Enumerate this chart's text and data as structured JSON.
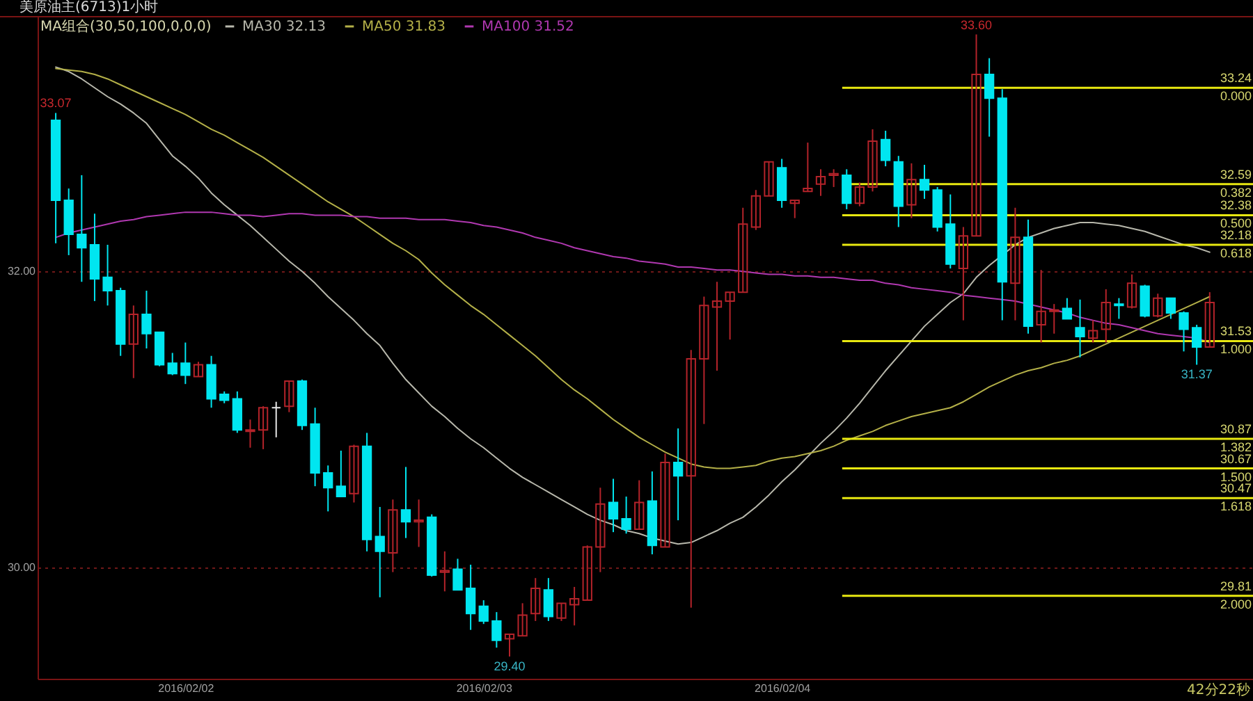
{
  "chart_data": {
    "type": "candlestick",
    "title": "美原油主(6713)1小时",
    "legend_title": "MA组合(30,50,100,0,0,0)",
    "categories": [
      null,
      null,
      null,
      null,
      null,
      null,
      null,
      null,
      null,
      null,
      "2016/02/02",
      null,
      null,
      null,
      null,
      null,
      null,
      null,
      null,
      null,
      null,
      null,
      null,
      null,
      null,
      null,
      null,
      null,
      null,
      null,
      null,
      null,
      null,
      "2016/02/03",
      null,
      null,
      null,
      null,
      null,
      null,
      null,
      null,
      null,
      null,
      null,
      null,
      null,
      null,
      null,
      null,
      null,
      null,
      null,
      null,
      null,
      null,
      "2016/02/04",
      null,
      null,
      null,
      null,
      null,
      null,
      null,
      null,
      null,
      null,
      null,
      null,
      null,
      null,
      null,
      null,
      null,
      null,
      null,
      null,
      null,
      null,
      null,
      null,
      null,
      null,
      null,
      null,
      null,
      null,
      null,
      null,
      null
    ],
    "ohlc": [
      [
        33.02,
        33.07,
        32.19,
        32.48
      ],
      [
        32.48,
        32.56,
        32.11,
        32.25
      ],
      [
        32.25,
        32.65,
        31.93,
        32.16
      ],
      [
        32.18,
        32.39,
        31.8,
        31.95
      ],
      [
        31.96,
        32.18,
        31.77,
        31.87
      ],
      [
        31.87,
        31.89,
        31.43,
        31.51
      ],
      [
        31.51,
        31.77,
        31.28,
        31.71
      ],
      [
        31.71,
        31.87,
        31.48,
        31.58
      ],
      [
        31.59,
        31.59,
        31.36,
        31.37
      ],
      [
        31.38,
        31.45,
        31.3,
        31.31
      ],
      [
        31.38,
        31.52,
        31.24,
        31.3
      ],
      [
        31.29,
        31.39,
        31.29,
        31.37
      ],
      [
        31.37,
        31.43,
        31.08,
        31.14
      ],
      [
        31.17,
        31.19,
        31.11,
        31.13
      ],
      [
        31.14,
        31.19,
        30.91,
        30.93
      ],
      [
        30.92,
        31.0,
        30.81,
        30.93
      ],
      [
        30.93,
        31.09,
        30.8,
        31.08
      ],
      [
        31.08,
        31.12,
        30.88,
        31.08
      ],
      [
        31.09,
        31.26,
        31.05,
        31.26
      ],
      [
        31.26,
        31.27,
        30.93,
        30.96
      ],
      [
        30.97,
        31.08,
        30.55,
        30.64
      ],
      [
        30.64,
        30.69,
        30.38,
        30.54
      ],
      [
        30.55,
        30.79,
        30.48,
        30.48
      ],
      [
        30.5,
        30.83,
        30.44,
        30.82
      ],
      [
        30.82,
        30.91,
        30.11,
        30.19
      ],
      [
        30.21,
        30.41,
        29.8,
        30.11
      ],
      [
        30.1,
        30.46,
        29.97,
        30.39
      ],
      [
        30.39,
        30.68,
        30.2,
        30.31
      ],
      [
        30.31,
        30.46,
        30.14,
        30.32
      ],
      [
        30.34,
        30.36,
        29.94,
        29.95
      ],
      [
        29.97,
        30.11,
        29.84,
        29.98
      ],
      [
        29.99,
        30.06,
        29.85,
        29.85
      ],
      [
        29.86,
        30.02,
        29.58,
        29.69
      ],
      [
        29.74,
        29.78,
        29.62,
        29.64
      ],
      [
        29.64,
        29.7,
        29.46,
        29.51
      ],
      [
        29.52,
        29.55,
        29.4,
        29.55
      ],
      [
        29.54,
        29.76,
        29.54,
        29.68
      ],
      [
        29.69,
        29.93,
        29.64,
        29.86
      ],
      [
        29.85,
        29.93,
        29.64,
        29.67
      ],
      [
        29.66,
        29.76,
        29.64,
        29.76
      ],
      [
        29.75,
        29.87,
        29.61,
        29.79
      ],
      [
        29.78,
        30.15,
        29.78,
        30.14
      ],
      [
        30.14,
        30.54,
        29.97,
        30.43
      ],
      [
        30.44,
        30.6,
        30.24,
        30.33
      ],
      [
        30.33,
        30.48,
        30.23,
        30.26
      ],
      [
        30.26,
        30.59,
        30.26,
        30.44
      ],
      [
        30.45,
        30.65,
        30.09,
        30.15
      ],
      [
        30.14,
        30.77,
        30.14,
        30.71
      ],
      [
        30.71,
        30.94,
        30.32,
        30.62
      ],
      [
        30.62,
        31.47,
        29.73,
        31.41
      ],
      [
        31.41,
        31.83,
        30.97,
        31.77
      ],
      [
        31.76,
        31.93,
        31.33,
        31.8
      ],
      [
        31.8,
        31.86,
        31.54,
        31.86
      ],
      [
        31.86,
        32.43,
        31.86,
        32.32
      ],
      [
        32.3,
        32.55,
        32.28,
        32.51
      ],
      [
        32.51,
        32.74,
        32.51,
        32.74
      ],
      [
        32.7,
        32.76,
        32.43,
        32.48
      ],
      [
        32.46,
        32.48,
        32.36,
        32.48
      ],
      [
        32.54,
        32.87,
        32.54,
        32.56
      ],
      [
        32.59,
        32.69,
        32.51,
        32.64
      ],
      [
        32.65,
        32.69,
        32.57,
        32.66
      ],
      [
        32.65,
        32.69,
        32.42,
        32.46
      ],
      [
        32.46,
        32.6,
        32.44,
        32.57
      ],
      [
        32.57,
        32.96,
        32.54,
        32.88
      ],
      [
        32.89,
        32.95,
        32.71,
        32.75
      ],
      [
        32.74,
        32.78,
        32.3,
        32.44
      ],
      [
        32.45,
        32.73,
        32.36,
        32.62
      ],
      [
        32.62,
        32.72,
        32.49,
        32.55
      ],
      [
        32.55,
        32.57,
        32.27,
        32.3
      ],
      [
        32.32,
        32.52,
        32.02,
        32.05
      ],
      [
        32.02,
        32.3,
        31.67,
        32.24
      ],
      [
        32.24,
        33.6,
        32.24,
        33.33
      ],
      [
        33.33,
        33.44,
        32.91,
        33.17
      ],
      [
        33.17,
        33.23,
        31.67,
        31.93
      ],
      [
        31.92,
        32.43,
        31.67,
        32.23
      ],
      [
        32.23,
        32.35,
        31.58,
        31.63
      ],
      [
        31.64,
        32.01,
        31.52,
        31.73
      ],
      [
        31.73,
        31.78,
        31.58,
        31.74
      ],
      [
        31.75,
        31.82,
        31.68,
        31.68
      ],
      [
        31.62,
        31.81,
        31.42,
        31.56
      ],
      [
        31.55,
        31.67,
        31.52,
        31.6
      ],
      [
        31.61,
        31.88,
        31.52,
        31.79
      ],
      [
        31.78,
        31.82,
        31.68,
        31.77
      ],
      [
        31.76,
        31.98,
        31.75,
        31.92
      ],
      [
        31.9,
        31.91,
        31.69,
        31.7
      ],
      [
        31.7,
        31.85,
        31.69,
        31.82
      ],
      [
        31.82,
        31.82,
        31.68,
        31.72
      ],
      [
        31.72,
        31.73,
        31.46,
        31.61
      ],
      [
        31.62,
        31.64,
        31.37,
        31.49
      ],
      [
        31.49,
        31.86,
        31.49,
        31.79
      ]
    ],
    "colors": [
      "#00e6f0",
      "#00e6f0",
      "#00e6f0",
      "#00e6f0",
      "#00e6f0",
      "#00e6f0",
      "#b4232a",
      "#00e6f0",
      "#00e6f0",
      "#00e6f0",
      "#00e6f0",
      "#b4232a",
      "#00e6f0",
      "#00e6f0",
      "#00e6f0",
      "#b4232a",
      "#b4232a",
      "#e6e6e6",
      "#b4232a",
      "#00e6f0",
      "#00e6f0",
      "#00e6f0",
      "#00e6f0",
      "#b4232a",
      "#00e6f0",
      "#00e6f0",
      "#b4232a",
      "#00e6f0",
      "#b4232a",
      "#00e6f0",
      "#b4232a",
      "#00e6f0",
      "#00e6f0",
      "#00e6f0",
      "#00e6f0",
      "#b4232a",
      "#b4232a",
      "#b4232a",
      "#00e6f0",
      "#b4232a",
      "#b4232a",
      "#b4232a",
      "#b4232a",
      "#00e6f0",
      "#00e6f0",
      "#b4232a",
      "#00e6f0",
      "#b4232a",
      "#00e6f0",
      "#b4232a",
      "#b4232a",
      "#b4232a",
      "#b4232a",
      "#b4232a",
      "#b4232a",
      "#b4232a",
      "#00e6f0",
      "#b4232a",
      "#b4232a",
      "#b4232a",
      "#b4232a",
      "#00e6f0",
      "#b4232a",
      "#b4232a",
      "#00e6f0",
      "#00e6f0",
      "#b4232a",
      "#00e6f0",
      "#00e6f0",
      "#00e6f0",
      "#b4232a",
      "#b4232a",
      "#00e6f0",
      "#00e6f0",
      "#b4232a",
      "#00e6f0",
      "#b4232a",
      "#b4232a",
      "#00e6f0",
      "#00e6f0",
      "#b4232a",
      "#b4232a",
      "#00e6f0",
      "#b4232a",
      "#00e6f0",
      "#b4232a",
      "#00e6f0",
      "#00e6f0",
      "#00e6f0",
      "#b4232a"
    ],
    "series": [
      {
        "name": "MA30 32.13",
        "type": "line",
        "color": "#b8b8ac",
        "values": [
          33.38,
          33.35,
          33.3,
          33.24,
          33.18,
          33.13,
          33.07,
          33.0,
          32.89,
          32.78,
          32.71,
          32.63,
          32.53,
          32.45,
          32.38,
          32.31,
          32.23,
          32.15,
          32.07,
          32.0,
          31.92,
          31.83,
          31.75,
          31.67,
          31.58,
          31.5,
          31.38,
          31.27,
          31.18,
          31.09,
          31.02,
          30.94,
          30.87,
          30.81,
          30.74,
          30.67,
          30.61,
          30.56,
          30.51,
          30.46,
          30.41,
          30.36,
          30.32,
          30.29,
          30.25,
          30.23,
          30.2,
          30.18,
          30.16,
          30.17,
          30.21,
          30.25,
          30.3,
          30.34,
          30.41,
          30.49,
          30.58,
          30.66,
          30.75,
          30.84,
          30.92,
          31.01,
          31.11,
          31.22,
          31.33,
          31.43,
          31.53,
          31.63,
          31.71,
          31.79,
          31.85,
          31.96,
          32.04,
          32.11,
          32.18,
          32.23,
          32.26,
          32.29,
          32.31,
          32.33,
          32.33,
          32.32,
          32.31,
          32.29,
          32.27,
          32.24,
          32.21,
          32.18,
          32.16,
          32.13
        ]
      },
      {
        "name": "MA50 31.83",
        "type": "line",
        "color": "#b4b048",
        "values": [
          33.37,
          33.36,
          33.35,
          33.33,
          33.3,
          33.26,
          33.22,
          33.18,
          33.14,
          33.1,
          33.06,
          33.01,
          32.96,
          32.92,
          32.87,
          32.82,
          32.77,
          32.71,
          32.65,
          32.59,
          32.53,
          32.47,
          32.42,
          32.37,
          32.31,
          32.25,
          32.19,
          32.14,
          32.08,
          31.99,
          31.91,
          31.84,
          31.77,
          31.71,
          31.64,
          31.57,
          31.5,
          31.43,
          31.35,
          31.27,
          31.2,
          31.14,
          31.07,
          31.0,
          30.94,
          30.88,
          30.83,
          30.78,
          30.74,
          30.7,
          30.68,
          30.67,
          30.67,
          30.68,
          30.69,
          30.72,
          30.74,
          30.75,
          30.77,
          30.79,
          30.82,
          30.86,
          30.89,
          30.92,
          30.96,
          30.99,
          31.02,
          31.04,
          31.06,
          31.08,
          31.12,
          31.17,
          31.22,
          31.26,
          31.3,
          31.33,
          31.35,
          31.38,
          31.4,
          31.43,
          31.47,
          31.51,
          31.55,
          31.59,
          31.63,
          31.67,
          31.71,
          31.75,
          31.79,
          31.83
        ]
      },
      {
        "name": "MA100 31.52",
        "type": "line",
        "color": "#b038b0",
        "values": [
          32.23,
          32.26,
          32.28,
          32.3,
          32.32,
          32.34,
          32.35,
          32.37,
          32.38,
          32.39,
          32.4,
          32.4,
          32.4,
          32.39,
          32.38,
          32.38,
          32.37,
          32.38,
          32.39,
          32.39,
          32.38,
          32.38,
          32.38,
          32.37,
          32.37,
          32.36,
          32.36,
          32.36,
          32.35,
          32.35,
          32.35,
          32.34,
          32.33,
          32.31,
          32.3,
          32.28,
          32.26,
          32.23,
          32.21,
          32.19,
          32.16,
          32.14,
          32.12,
          32.1,
          32.09,
          32.07,
          32.06,
          32.05,
          32.03,
          32.03,
          32.02,
          32.01,
          32.01,
          32.0,
          31.99,
          31.98,
          31.98,
          31.97,
          31.97,
          31.96,
          31.96,
          31.95,
          31.94,
          31.94,
          31.92,
          31.91,
          31.89,
          31.88,
          31.87,
          31.86,
          31.84,
          31.83,
          31.82,
          31.81,
          31.8,
          31.78,
          31.76,
          31.74,
          31.72,
          31.69,
          31.67,
          31.65,
          31.64,
          31.62,
          31.6,
          31.58,
          31.57,
          31.56,
          31.55,
          31.52
        ]
      }
    ],
    "ylim": [
      29.25,
      33.72
    ],
    "yticks": [
      {
        "value": 32,
        "label": "32.00"
      },
      {
        "value": 30,
        "label": "30.00"
      }
    ],
    "grid": "y",
    "legend": "top left",
    "ref_lines": [
      {
        "axis": "y",
        "value": 33.24,
        "label": "33.24\n0.000",
        "color": "#e8e810"
      },
      {
        "axis": "y",
        "value": 32.59,
        "label": "32.59\n0.382",
        "color": "#e8e810"
      },
      {
        "axis": "y",
        "value": 32.38,
        "label": "32.38\n0.500",
        "color": "#e8e810"
      },
      {
        "axis": "y",
        "value": 32.18,
        "label": "32.18\n0.618",
        "color": "#e8e810"
      },
      {
        "axis": "y",
        "value": 31.53,
        "label": "31.53\n1.000",
        "color": "#e8e810"
      },
      {
        "axis": "y",
        "value": 30.87,
        "label": "30.87\n1.382",
        "color": "#e8e810"
      },
      {
        "axis": "y",
        "value": 30.67,
        "label": "30.67\n1.500",
        "color": "#e8e810"
      },
      {
        "axis": "y",
        "value": 30.47,
        "label": "30.47\n1.618",
        "color": "#e8e810"
      },
      {
        "axis": "y",
        "value": 29.81,
        "label": "29.81\n2.000",
        "color": "#e8e810"
      }
    ],
    "annotations": [
      {
        "text": "33.07",
        "y": 33.07
      },
      {
        "text": "33.60",
        "y": 33.6
      },
      {
        "text": "31.37",
        "y": 31.37
      },
      {
        "text": "29.40",
        "y": 29.4
      },
      "42分22秒"
    ]
  }
}
